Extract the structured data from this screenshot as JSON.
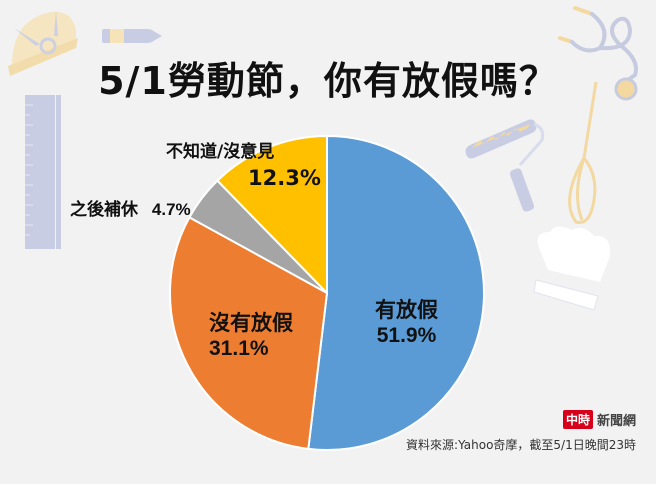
{
  "title": "5/1勞動節，你有放假嗎？",
  "chart_data": {
    "type": "pie",
    "title": "5/1勞動節，你有放假嗎？",
    "categories": [
      "有放假",
      "沒有放假",
      "之後補休",
      "不知道/沒意見"
    ],
    "values": [
      51.9,
      31.1,
      4.7,
      12.3
    ],
    "unit": "%",
    "colors": [
      "#5B9BD5",
      "#ED7D31",
      "#A5A5A5",
      "#FFC000"
    ],
    "start_angle_deg": 0,
    "direction": "clockwise",
    "data_labels": [
      "51.9%",
      "31.1%",
      "4.7%",
      "12.3%"
    ],
    "legend": "none (labels on/near slices)"
  },
  "labels": {
    "yes": {
      "name": "有放假",
      "pct": "51.9%"
    },
    "no": {
      "name": "沒有放假",
      "pct": "31.1%"
    },
    "later": {
      "name": "之後補休",
      "pct": "4.7%"
    },
    "unsure": {
      "name": "不知道/沒意見",
      "pct": "12.3%"
    }
  },
  "footer": {
    "brand_logo": "中時",
    "brand_name": "新聞網",
    "source": "資料來源:Yahoo奇摩，截至5/1日晚間23時"
  },
  "decorations": [
    "hard-hat-icon",
    "pencil-icon",
    "ruler-icon",
    "stethoscope-icon",
    "paint-roller-icon",
    "whisk-icon",
    "chef-hat-icon"
  ]
}
